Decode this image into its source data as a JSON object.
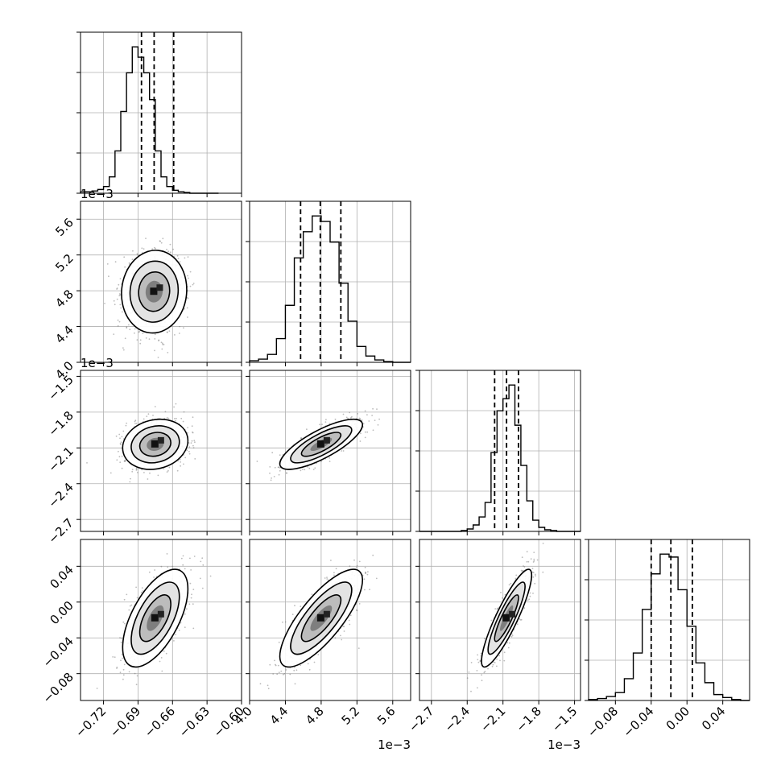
{
  "chart_data": {
    "type": "corner",
    "grid": true,
    "params": [
      {
        "index": 0,
        "scale": 1,
        "offset_label": "",
        "lim": [
          -0.74,
          -0.6
        ],
        "ticks": [
          -0.72,
          -0.69,
          -0.66,
          -0.63,
          -0.6
        ],
        "tick_labels": [
          "−0.72",
          "−0.69",
          "−0.66",
          "−0.63",
          "−0.60"
        ],
        "quantiles": [
          -0.687,
          -0.676,
          -0.659
        ]
      },
      {
        "index": 1,
        "scale": 0.001,
        "offset_label": "1e−3",
        "lim": [
          4.0,
          5.8
        ],
        "ticks": [
          4.0,
          4.4,
          4.8,
          5.2,
          5.6
        ],
        "tick_labels": [
          "4.0",
          "4.4",
          "4.8",
          "5.2",
          "5.6"
        ],
        "quantiles": [
          4.57,
          4.79,
          5.02
        ]
      },
      {
        "index": 2,
        "scale": 0.001,
        "offset_label": "1e−3",
        "lim": [
          -2.8,
          -1.45
        ],
        "ticks": [
          -2.7,
          -2.4,
          -2.1,
          -1.8,
          -1.5
        ],
        "tick_labels": [
          "−2.7",
          "−2.4",
          "−2.1",
          "−1.8",
          "−1.5"
        ],
        "quantiles": [
          -2.17,
          -2.07,
          -1.97
        ]
      },
      {
        "index": 3,
        "scale": 1,
        "offset_label": "",
        "lim": [
          -0.11,
          0.07
        ],
        "ticks": [
          -0.08,
          -0.04,
          0.0,
          0.04
        ],
        "tick_labels": [
          "−0.08",
          "−0.04",
          "0.00",
          "0.04"
        ],
        "quantiles": [
          -0.04,
          -0.018,
          0.006
        ]
      }
    ],
    "histograms": [
      {
        "param": 0,
        "bin_edges": [
          -0.74,
          -0.735,
          -0.73,
          -0.725,
          -0.72,
          -0.715,
          -0.71,
          -0.705,
          -0.7,
          -0.695,
          -0.69,
          -0.685,
          -0.68,
          -0.675,
          -0.67,
          -0.665,
          -0.66,
          -0.655,
          -0.65,
          -0.645,
          -0.64,
          -0.635,
          -0.63,
          -0.625,
          -0.62
        ],
        "counts": [
          2,
          2,
          3,
          5,
          9,
          22,
          57,
          110,
          162,
          197,
          183,
          162,
          126,
          57,
          22,
          9,
          4,
          2,
          1,
          0,
          0,
          0,
          0,
          0
        ]
      },
      {
        "param": 1,
        "bin_edges": [
          4.0,
          4.1,
          4.2,
          4.3,
          4.4,
          4.5,
          4.6,
          4.7,
          4.8,
          4.9,
          5.0,
          5.1,
          5.2,
          5.3,
          5.4,
          5.5,
          5.6,
          5.7,
          5.8
        ],
        "counts": [
          2,
          4,
          10,
          30,
          72,
          132,
          165,
          185,
          178,
          152,
          100,
          52,
          20,
          8,
          3,
          1,
          0,
          0
        ]
      },
      {
        "param": 2,
        "bin_edges": [
          -2.8,
          -2.75,
          -2.7,
          -2.65,
          -2.6,
          -2.55,
          -2.5,
          -2.45,
          -2.4,
          -2.35,
          -2.3,
          -2.25,
          -2.2,
          -2.15,
          -2.1,
          -2.05,
          -2.0,
          -1.95,
          -1.9,
          -1.85,
          -1.8,
          -1.75,
          -1.7,
          -1.65,
          -1.6,
          -1.55,
          -1.5,
          -1.45
        ],
        "counts": [
          0,
          0,
          0,
          0,
          0,
          0,
          0,
          1,
          3,
          8,
          18,
          36,
          98,
          150,
          165,
          182,
          132,
          82,
          38,
          14,
          5,
          2,
          1,
          0,
          0,
          0,
          0
        ]
      },
      {
        "param": 3,
        "bin_edges": [
          -0.11,
          -0.1,
          -0.09,
          -0.08,
          -0.07,
          -0.06,
          -0.05,
          -0.04,
          -0.03,
          -0.02,
          -0.01,
          0.0,
          0.01,
          0.02,
          0.03,
          0.04,
          0.05,
          0.06,
          0.07
        ],
        "counts": [
          1,
          2,
          4,
          8,
          22,
          48,
          92,
          128,
          148,
          145,
          112,
          75,
          38,
          18,
          6,
          3,
          1,
          0
        ]
      }
    ],
    "pairs": [
      {
        "x_param": 0,
        "y_param": 1,
        "mean": [
          -0.676,
          4.79
        ],
        "std": [
          0.0135,
          0.22
        ],
        "corr": 0.05,
        "sample_count": 900
      },
      {
        "x_param": 0,
        "y_param": 2,
        "mean": [
          -0.675,
          -2.07
        ],
        "std": [
          0.0135,
          0.1
        ],
        "corr": 0.15,
        "sample_count": 900
      },
      {
        "x_param": 1,
        "y_param": 2,
        "mean": [
          4.8,
          -2.07
        ],
        "std": [
          0.22,
          0.1
        ],
        "corr": 0.78,
        "sample_count": 900
      },
      {
        "x_param": 0,
        "y_param": 3,
        "mean": [
          -0.675,
          -0.018
        ],
        "std": [
          0.0135,
          0.026
        ],
        "corr": 0.6,
        "sample_count": 900
      },
      {
        "x_param": 1,
        "y_param": 3,
        "mean": [
          4.8,
          -0.018
        ],
        "std": [
          0.22,
          0.026
        ],
        "corr": 0.78,
        "sample_count": 900
      },
      {
        "x_param": 2,
        "y_param": 3,
        "mean": [
          -2.07,
          -0.018
        ],
        "std": [
          0.1,
          0.026
        ],
        "corr": 0.88,
        "sample_count": 900
      }
    ]
  }
}
